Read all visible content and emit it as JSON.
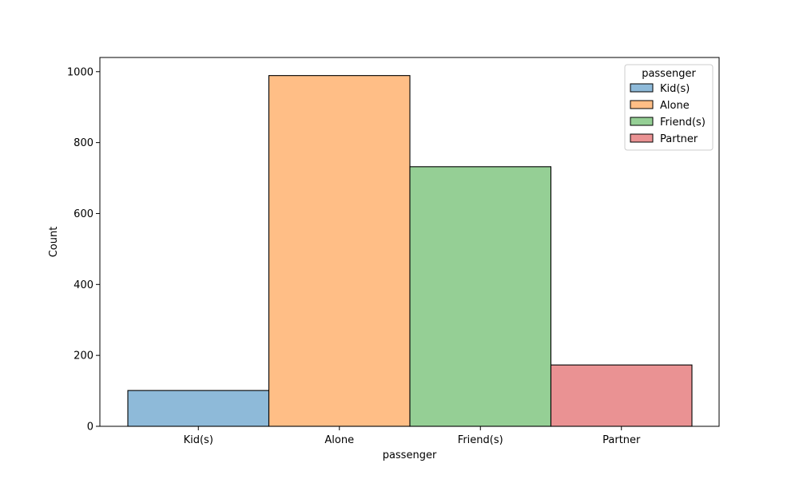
{
  "chart_data": {
    "type": "bar",
    "title": "",
    "xlabel": "passenger",
    "ylabel": "Count",
    "categories": [
      "Kid(s)",
      "Alone",
      "Friend(s)",
      "Partner"
    ],
    "values": [
      101,
      989,
      732,
      173
    ],
    "colors": [
      "#8ebad9",
      "#ffbe86",
      "#95cf95",
      "#ea9293"
    ],
    "ylim": [
      0,
      1040
    ],
    "yticks": [
      0,
      200,
      400,
      600,
      800,
      1000
    ],
    "grid": false,
    "legend": {
      "title": "passenger",
      "placement": "top-right",
      "entries": [
        "Kid(s)",
        "Alone",
        "Friend(s)",
        "Partner"
      ]
    }
  }
}
